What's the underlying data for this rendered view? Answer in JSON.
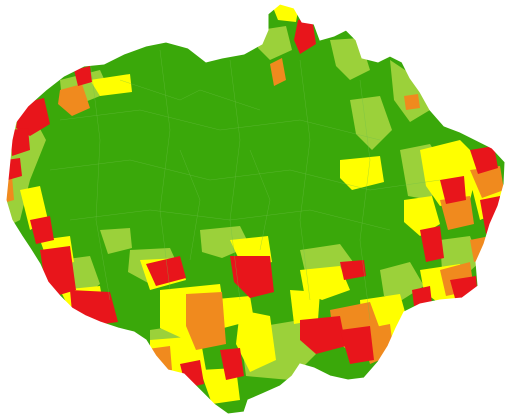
{
  "map": {
    "type": "choropleth",
    "colors": {
      "dark_green": "#3aa80a",
      "light_green": "#9bd13a",
      "yellow": "#ffff00",
      "orange": "#f08a1e",
      "red": "#e8151b",
      "background": "#ffffff"
    },
    "legend": null,
    "title": null
  }
}
